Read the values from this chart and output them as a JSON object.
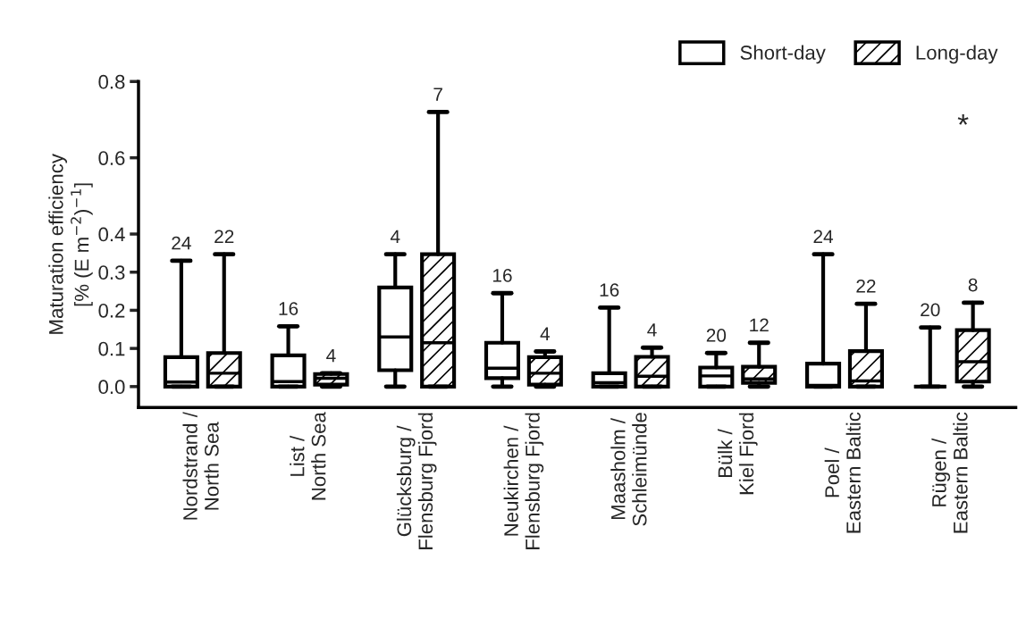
{
  "chart_data": {
    "type": "box",
    "ylabel": "Maturation efficiency\n[% (E m$^{−2}$)$^{−1}$]",
    "categories": [
      "Nordstrand /\nNorth Sea",
      "List /\nNorth Sea",
      "Glücksburg /\nFlensburg Fjord",
      "Neukirchen /\nFlensburg Fjord",
      "Maasholm /\nSchleimünde",
      "Bülk /\nKiel Fjord",
      "Poel /\nEastern Baltic",
      "Rügen /\nEastern Baltic"
    ],
    "series": [
      {
        "name": "Short-day",
        "color": "#000000",
        "value_labels": [
          "24",
          "16",
          "4",
          "16",
          "16",
          "20",
          "24",
          "20"
        ],
        "boxes": [
          {
            "low": 0,
            "q1": 0,
            "median": 0.012,
            "q3": 0.077,
            "high": 0.33
          },
          {
            "low": 0,
            "q1": 0,
            "median": 0.013,
            "q3": 0.082,
            "high": 0.158
          },
          {
            "low": 0,
            "q1": 0.043,
            "median": 0.13,
            "q3": 0.26,
            "high": 0.347
          },
          {
            "low": 0,
            "q1": 0.022,
            "median": 0.048,
            "q3": 0.115,
            "high": 0.245
          },
          {
            "low": 0,
            "q1": 0,
            "median": 0.01,
            "q3": 0.035,
            "high": 0.207
          },
          {
            "low": 0,
            "q1": 0,
            "median": 0.028,
            "q3": 0.05,
            "high": 0.088
          },
          {
            "low": 0,
            "q1": 0,
            "median": 0.003,
            "q3": 0.06,
            "high": 0.347
          },
          {
            "low": 0,
            "q1": 0,
            "median": 0,
            "q3": 0,
            "high": 0.155
          }
        ]
      },
      {
        "name": "Long-day",
        "color": "#000000",
        "value_labels": [
          "22",
          "4",
          "7",
          "4",
          "4",
          "12",
          "22",
          "8"
        ],
        "boxes": [
          {
            "low": 0,
            "q1": 0,
            "median": 0.035,
            "q3": 0.088,
            "high": 0.347
          },
          {
            "low": 0,
            "q1": 0.005,
            "median": 0.022,
            "q3": 0.033,
            "high": 0.035
          },
          {
            "low": 0,
            "q1": 0,
            "median": 0.115,
            "q3": 0.347,
            "high": 0.72
          },
          {
            "low": 0,
            "q1": 0.005,
            "median": 0.035,
            "q3": 0.077,
            "high": 0.092
          },
          {
            "low": 0,
            "q1": 0,
            "median": 0.027,
            "q3": 0.078,
            "high": 0.102
          },
          {
            "low": 0,
            "q1": 0.01,
            "median": 0.02,
            "q3": 0.052,
            "high": 0.115
          },
          {
            "low": 0,
            "q1": 0,
            "median": 0.015,
            "q3": 0.093,
            "high": 0.217
          },
          {
            "low": 0,
            "q1": 0.013,
            "median": 0.065,
            "q3": 0.148,
            "high": 0.22
          }
        ]
      }
    ],
    "annotations": [
      "*"
    ],
    "ylim": [
      -0.055,
      0.8
    ],
    "yticks": [
      {
        "value": 0,
        "label": "0.0"
      },
      0.1,
      0.2,
      0.3,
      0.4,
      0.6,
      0.8
    ],
    "legend": "top right",
    "grid": false
  }
}
